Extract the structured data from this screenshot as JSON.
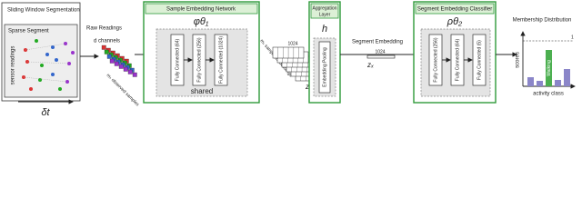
{
  "segmentation": {
    "title": "Sliding Window Segmentation",
    "segment": "Sparse Segment",
    "y_label": "sensor readings",
    "window": "δt"
  },
  "raw_readings": {
    "title": "Raw Readings",
    "channels": "d channels",
    "samples": "mₛ observed samples"
  },
  "sample_network": {
    "title": "Sample Embedding Network",
    "function": "φθ₁",
    "layers": [
      "Fully Connected (64)",
      "Fully Connected (256)",
      "Fully Connected (1024)"
    ],
    "note": "shared"
  },
  "sample_embeddings": {
    "label": "mₛ sample embeddings",
    "dim": "1024",
    "symbol": "zₛ"
  },
  "aggregation": {
    "title_lines": [
      "Aggregation",
      "Layer"
    ],
    "function": "h",
    "layer": "Embedding Pooling"
  },
  "segment_embedding": {
    "title": "Segment Embedding",
    "dim": "1024",
    "symbol": "zₓ"
  },
  "classifier": {
    "title": "Segment Embedding Classifier",
    "function": "ρθ₂",
    "layers": [
      "Fully Connected (256)",
      "Fully Connected (64)",
      "Fully Connected (5)"
    ]
  },
  "membership": {
    "title": "Membership Distribution",
    "y_label": "scores",
    "x_label": "activity class",
    "max_tick": "1",
    "top_class": "Walking"
  }
}
